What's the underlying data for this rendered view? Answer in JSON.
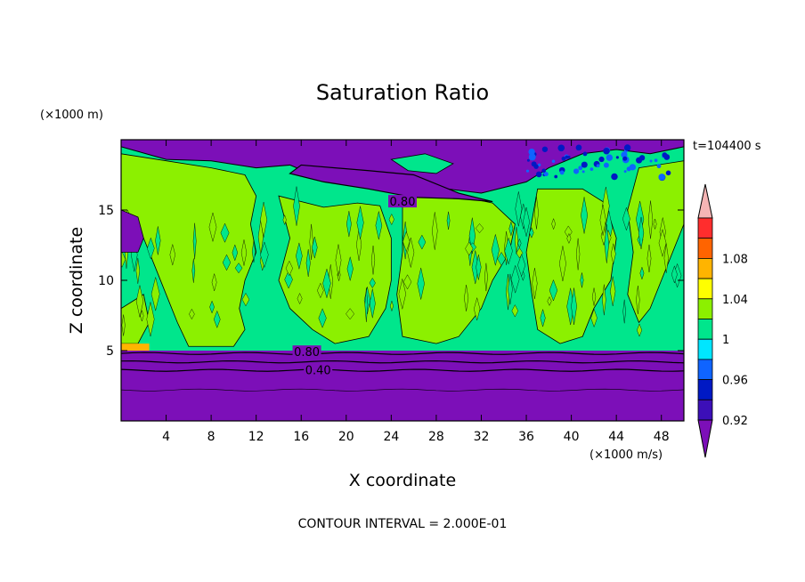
{
  "chart_data": {
    "type": "heatmap",
    "title": "Saturation Ratio",
    "xlabel": "X coordinate",
    "ylabel": "Z coordinate",
    "x_unit": "(×1000 m/s)",
    "y_unit": "(×1000 m)",
    "time_label": "t=104400 s",
    "footer": "CONTOUR INTERVAL = 2.000E-01",
    "xlim": [
      0,
      50
    ],
    "ylim": [
      0,
      20
    ],
    "x_ticks": [
      4,
      8,
      12,
      16,
      20,
      24,
      28,
      32,
      36,
      40,
      44,
      48
    ],
    "y_ticks": [
      5,
      10,
      15
    ],
    "contour_labels": [
      {
        "text": "0.80",
        "x": 25,
        "y": 15.5
      },
      {
        "text": "0.80",
        "x": 16.5,
        "y": 4.8
      },
      {
        "text": "0.40",
        "x": 17.5,
        "y": 3.5
      }
    ],
    "colorbar": {
      "levels": [
        0.92,
        0.94,
        0.96,
        0.98,
        1.0,
        1.02,
        1.04,
        1.06,
        1.08,
        1.1
      ],
      "tick_labels": [
        "0.92",
        "0.96",
        "1",
        "1.04",
        "1.08"
      ],
      "colors": [
        "#7c0fb8",
        "#3c0fb8",
        "#0019c4",
        "#0f64ff",
        "#00e6ff",
        "#00e68c",
        "#8cf000",
        "#ffff00",
        "#ffb400",
        "#ff6400",
        "#ff2d2d",
        "#f5b4b4"
      ]
    }
  }
}
